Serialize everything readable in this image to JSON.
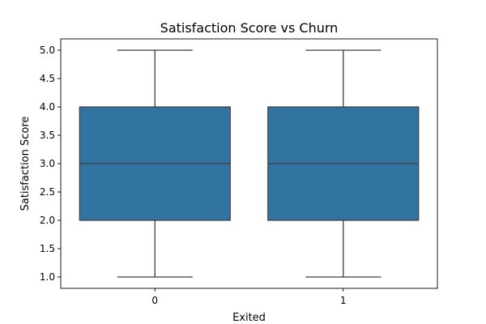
{
  "chart_data": {
    "type": "box",
    "title": "Satisfaction Score vs Churn",
    "xlabel": "Exited",
    "ylabel": "Satisfaction Score",
    "categories": [
      "0",
      "1"
    ],
    "boxes": [
      {
        "category": "0",
        "min": 1.0,
        "q1": 2.0,
        "median": 3.0,
        "q3": 4.0,
        "max": 5.0
      },
      {
        "category": "1",
        "min": 1.0,
        "q1": 2.0,
        "median": 3.0,
        "q3": 4.0,
        "max": 5.0
      }
    ],
    "ylim": [
      0.8,
      5.2
    ],
    "yticks": [
      "1.0",
      "1.5",
      "2.0",
      "2.5",
      "3.0",
      "3.5",
      "4.0",
      "4.5",
      "5.0"
    ],
    "box_color": "#3274a1",
    "line_color": "#3d3d3d",
    "grid": false,
    "legend": "none"
  }
}
